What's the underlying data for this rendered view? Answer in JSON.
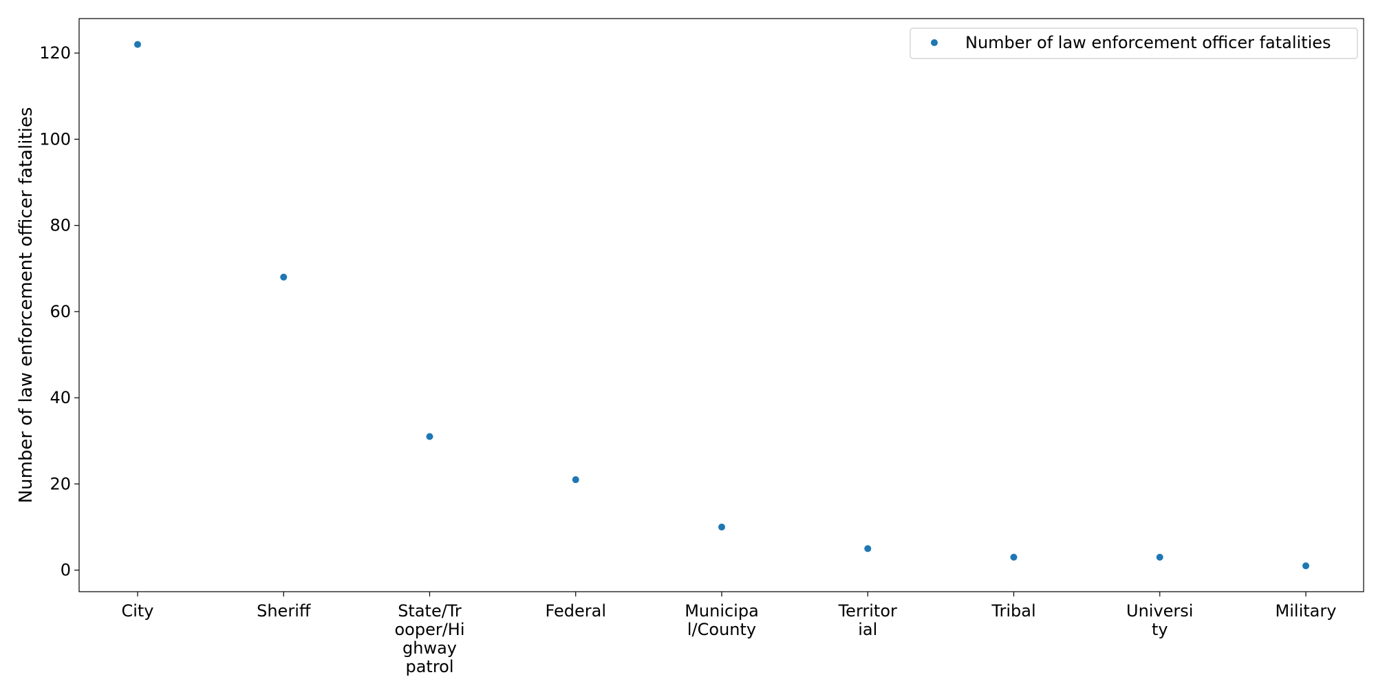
{
  "chart_data": {
    "type": "scatter",
    "categories": [
      "City",
      "Sheriff",
      "State/Trooper/Highway patrol",
      "Federal",
      "Municipal/County",
      "Territorial",
      "Tribal",
      "University",
      "Military"
    ],
    "category_tick_lines": [
      [
        "City"
      ],
      [
        "Sheriff"
      ],
      [
        "State/Tr",
        "ooper/Hi",
        "ghway",
        "patrol"
      ],
      [
        "Federal"
      ],
      [
        "Municipa",
        "l/County"
      ],
      [
        "Territor",
        "ial"
      ],
      [
        "Tribal"
      ],
      [
        "Universi",
        "ty"
      ],
      [
        "Military"
      ]
    ],
    "series": [
      {
        "name": "Number of law enforcement officer fatalities",
        "values": [
          122,
          68,
          31,
          21,
          10,
          5,
          3,
          3,
          1
        ],
        "color": "#1f77b4"
      }
    ],
    "title": "",
    "xlabel": "",
    "ylabel": "Number of law enforcement officer fatalities",
    "ylim": [
      -5,
      128
    ],
    "yticks": [
      0,
      20,
      40,
      60,
      80,
      100,
      120
    ],
    "grid": false,
    "legend": {
      "position": "top-right"
    }
  }
}
